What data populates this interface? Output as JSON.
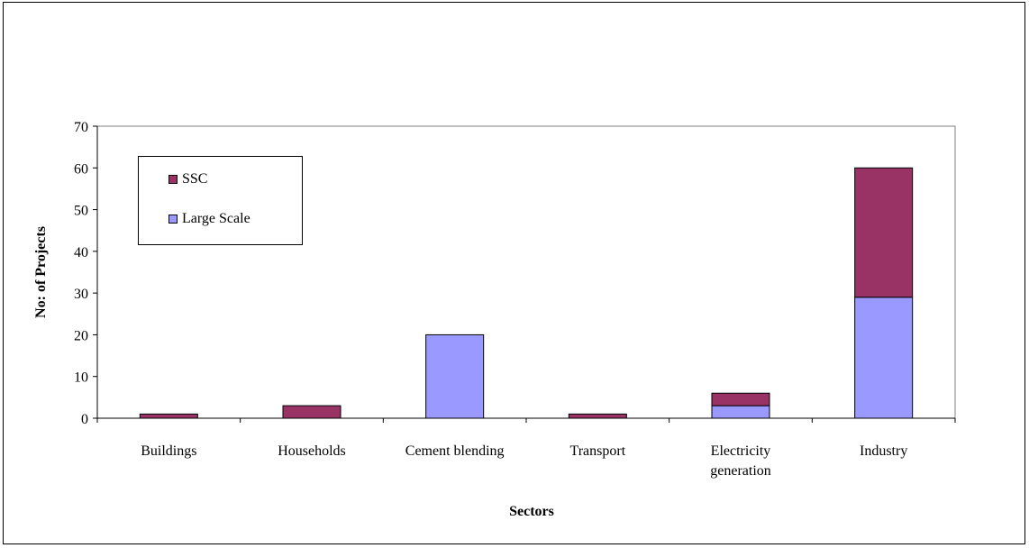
{
  "chart_data": {
    "type": "bar",
    "stacked": true,
    "categories": [
      "Buildings",
      "Households",
      "Cement blending",
      "Transport",
      "Electricity generation",
      "Industry"
    ],
    "category_lines": [
      [
        "Buildings"
      ],
      [
        "Households"
      ],
      [
        "Cement blending"
      ],
      [
        "Transport"
      ],
      [
        "Electricity",
        "generation"
      ],
      [
        "Industry"
      ]
    ],
    "series": [
      {
        "name": "Large Scale",
        "values": [
          0,
          0,
          20,
          0,
          3,
          29
        ],
        "color": "#9999ff"
      },
      {
        "name": "SSC",
        "values": [
          1,
          3,
          0,
          1,
          3,
          31
        ],
        "color": "#993366"
      }
    ],
    "xlabel": "Sectors",
    "ylabel": "No: of Projects",
    "ylim": [
      0,
      70
    ],
    "yticks": [
      0,
      10,
      20,
      30,
      40,
      50,
      60,
      70
    ],
    "grid": false,
    "legend_position": "top-left",
    "legend_order": [
      "SSC",
      "Large Scale"
    ]
  }
}
